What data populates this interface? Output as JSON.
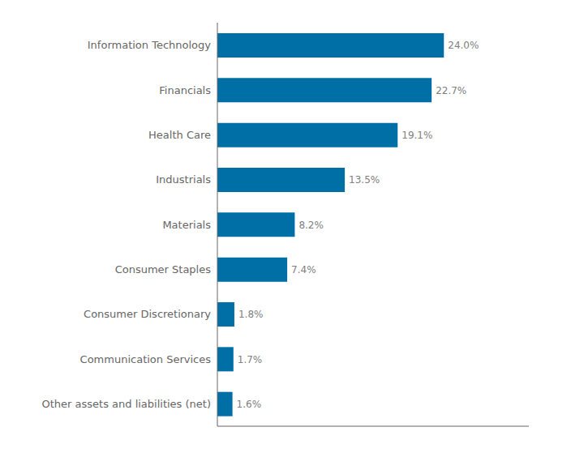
{
  "chart_data": {
    "type": "bar",
    "orientation": "horizontal",
    "categories": [
      "Other assets and liabilities (net)",
      "Communication Services",
      "Consumer Discretionary",
      "Consumer Staples",
      "Materials",
      "Industrials",
      "Health Care",
      "Financials",
      "Information Technology"
    ],
    "values": [
      1.6,
      1.7,
      1.8,
      7.4,
      8.2,
      13.5,
      19.1,
      22.7,
      24.0
    ],
    "value_labels": [
      "1.6%",
      "1.7%",
      "1.8%",
      "7.4%",
      "8.2%",
      "13.5%",
      "19.1%",
      "22.7%",
      "24.0%"
    ],
    "data_labels": true,
    "color": "#006FA6",
    "xlim": [
      0,
      33
    ],
    "tick_labels": "y",
    "grid": false
  }
}
